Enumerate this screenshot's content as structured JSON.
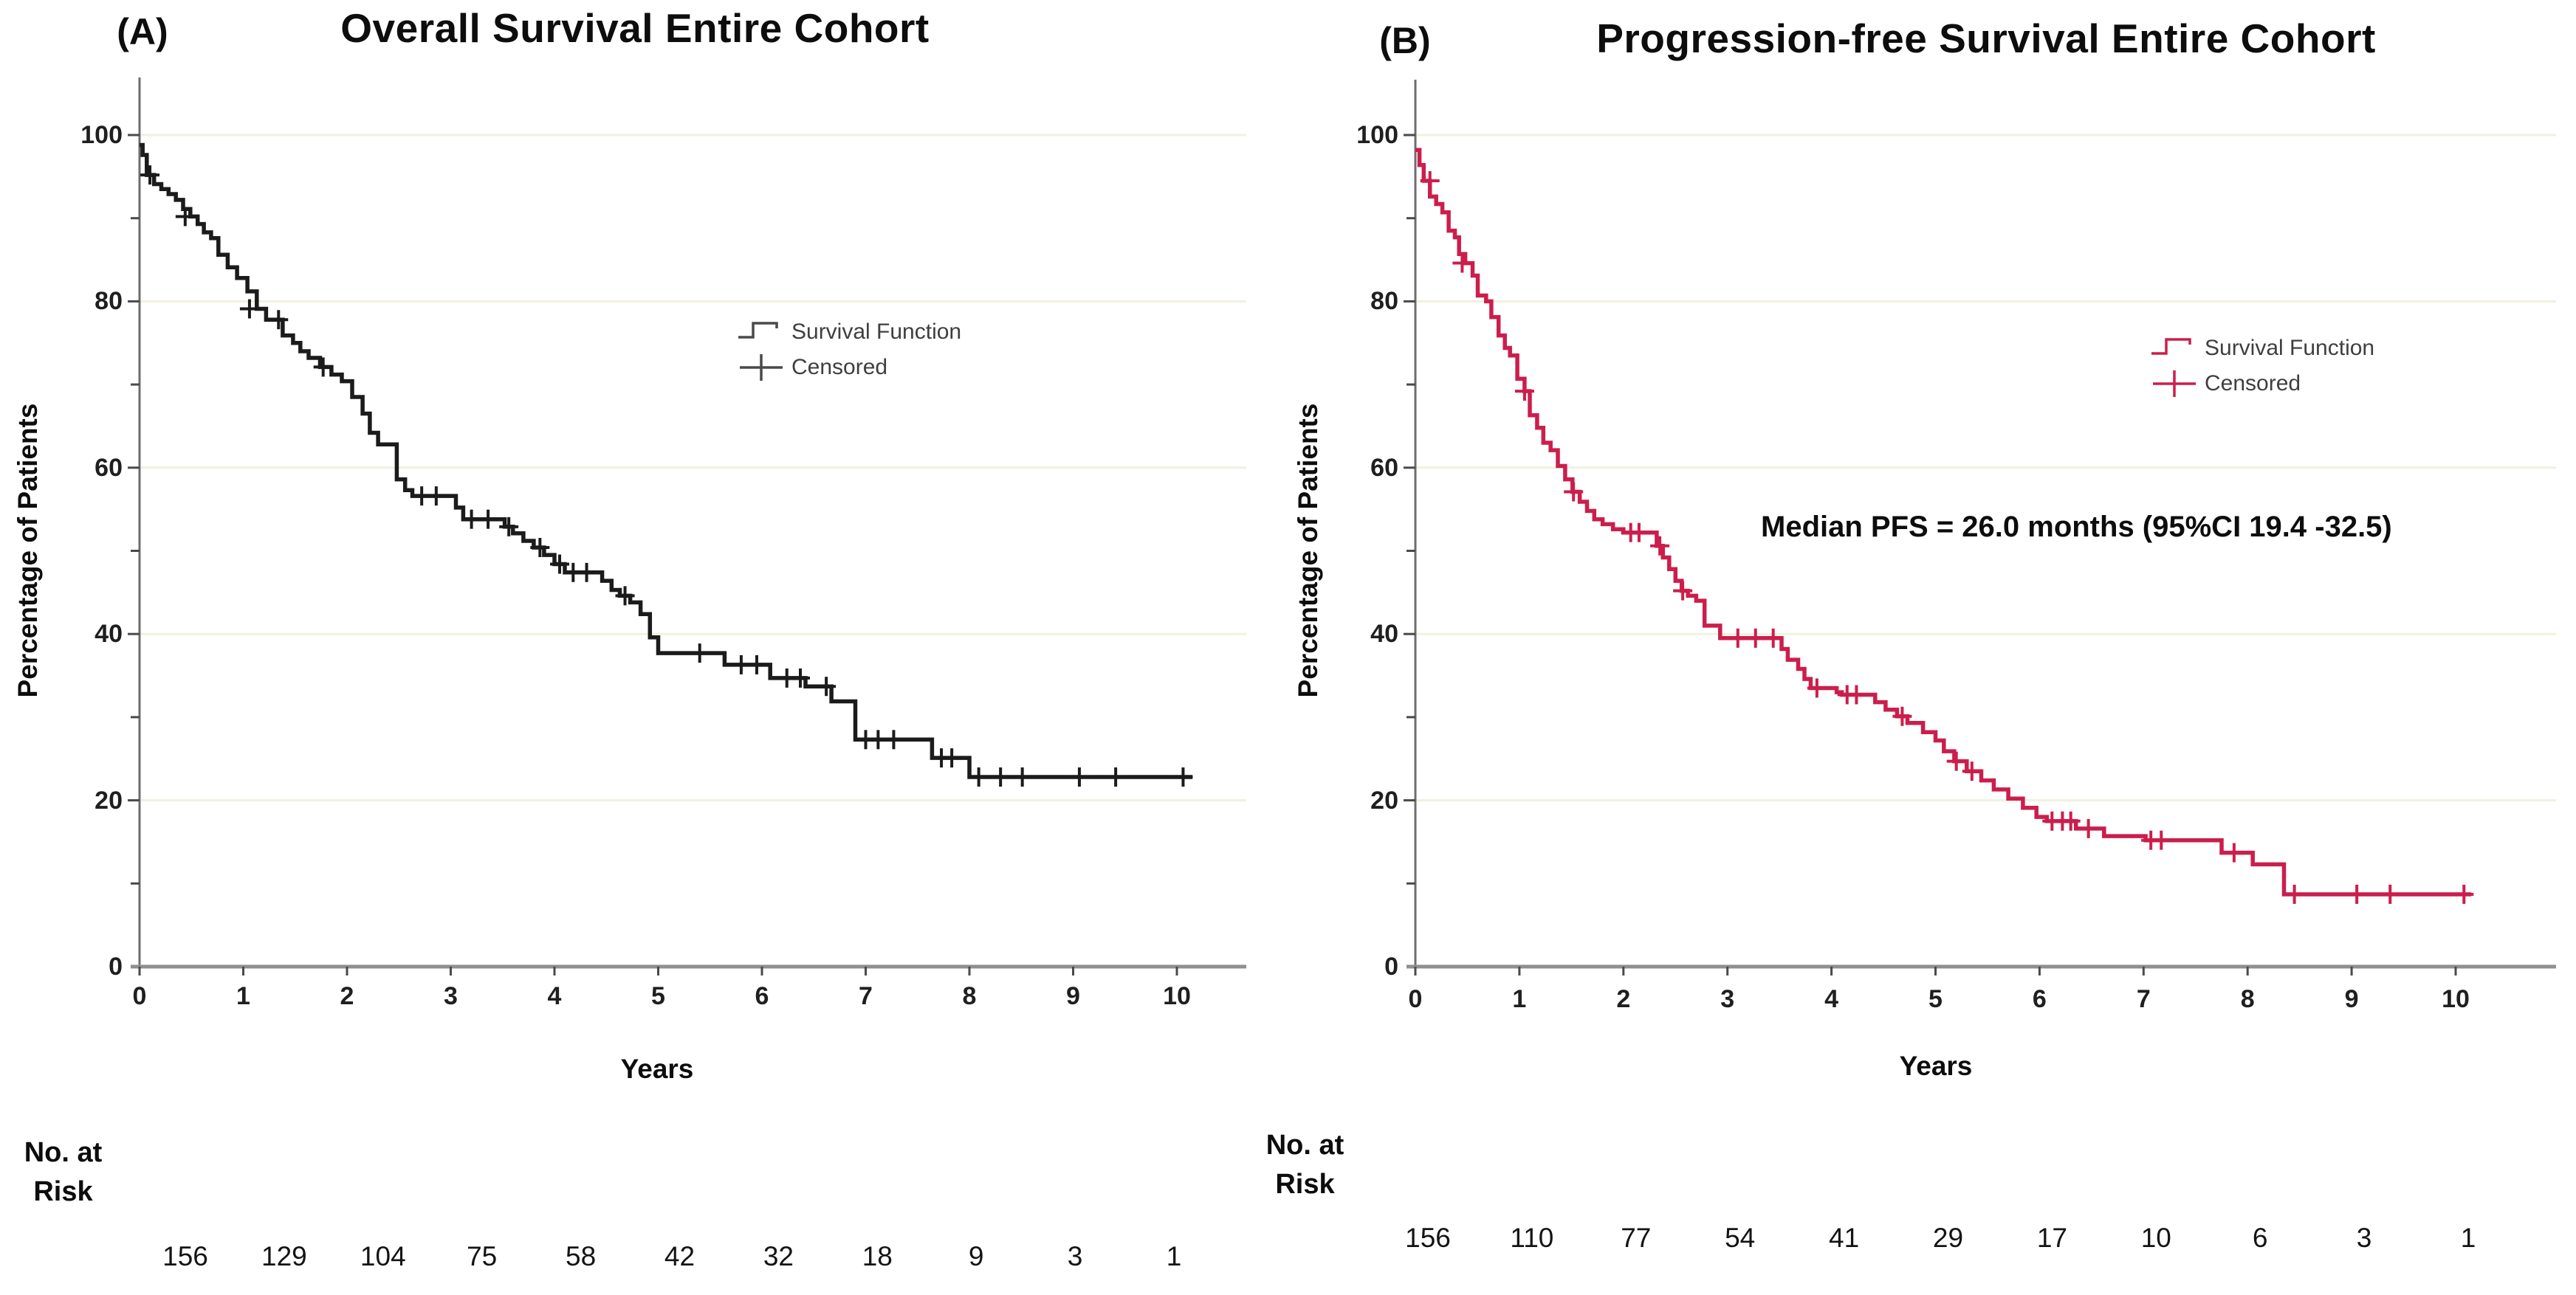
{
  "figure": {
    "panels": [
      {
        "label": "(A)",
        "title": "Overall Survival Entire Cohort",
        "ylabel": "Percentage of Patients",
        "xlabel": "Years",
        "legend": {
          "survival": "Survival Function",
          "censored": "Censored"
        },
        "risk_header_line1": "No. at",
        "risk_header_line2": "Risk"
      },
      {
        "label": "(B)",
        "title": "Progression-free Survival Entire Cohort",
        "ylabel": "Percentage of Patients",
        "xlabel": "Years",
        "legend": {
          "survival": "Survival Function",
          "censored": "Censored"
        },
        "annotation": "Median PFS = 26.0 months (95%CI 19.4 -32.5)",
        "risk_header_line1": "No. at",
        "risk_header_line2": "Risk"
      }
    ]
  },
  "chart_data": [
    {
      "type": "line",
      "subtype": "kaplan-meier-step",
      "panel": "A",
      "title": "Overall Survival Entire Cohort",
      "xlabel": "Years",
      "ylabel": "Percentage of Patients",
      "xlim": [
        0,
        10.5
      ],
      "ylim": [
        0,
        100
      ],
      "xticks": [
        0,
        1,
        2,
        3,
        4,
        5,
        6,
        7,
        8,
        9,
        10
      ],
      "yticks": [
        0,
        20,
        40,
        60,
        80,
        100
      ],
      "y_minor_ticks": [
        10,
        30,
        50,
        70,
        90
      ],
      "gridlines_at": [
        20,
        40,
        60,
        80,
        100
      ],
      "grid": "horizontal-major",
      "legend_position": "center-right",
      "color": "#1b1b1b",
      "series": [
        {
          "name": "Survival Function",
          "end_x": 10.15,
          "step_points": [
            [
              0,
              98.8
            ],
            [
              0.03,
              97.6
            ],
            [
              0.07,
              95.2
            ],
            [
              0.14,
              94.1
            ],
            [
              0.21,
              93.5
            ],
            [
              0.28,
              92.9
            ],
            [
              0.35,
              92.2
            ],
            [
              0.42,
              91.1
            ],
            [
              0.49,
              90.2
            ],
            [
              0.56,
              89.3
            ],
            [
              0.62,
              88.3
            ],
            [
              0.69,
              87.6
            ],
            [
              0.76,
              85.6
            ],
            [
              0.85,
              84.1
            ],
            [
              0.94,
              82.8
            ],
            [
              1.04,
              81.2
            ],
            [
              1.13,
              79.1
            ],
            [
              1.22,
              77.8
            ],
            [
              1.38,
              75.9
            ],
            [
              1.48,
              75.0
            ],
            [
              1.55,
              74.0
            ],
            [
              1.63,
              73.2
            ],
            [
              1.74,
              72.1
            ],
            [
              1.85,
              71.2
            ],
            [
              1.95,
              70.4
            ],
            [
              2.05,
              68.5
            ],
            [
              2.15,
              66.5
            ],
            [
              2.22,
              64.2
            ],
            [
              2.3,
              62.8
            ],
            [
              2.48,
              58.6
            ],
            [
              2.56,
              57.3
            ],
            [
              2.63,
              56.6
            ],
            [
              3.05,
              55.2
            ],
            [
              3.12,
              53.8
            ],
            [
              3.52,
              52.9
            ],
            [
              3.6,
              52.1
            ],
            [
              3.7,
              51.2
            ],
            [
              3.8,
              50.4
            ],
            [
              3.9,
              49.5
            ],
            [
              4.0,
              48.4
            ],
            [
              4.1,
              47.4
            ],
            [
              4.46,
              46.4
            ],
            [
              4.55,
              45.3
            ],
            [
              4.63,
              44.6
            ],
            [
              4.73,
              43.8
            ],
            [
              4.83,
              42.4
            ],
            [
              4.92,
              39.6
            ],
            [
              5.0,
              37.7
            ],
            [
              5.64,
              36.3
            ],
            [
              6.08,
              34.7
            ],
            [
              6.42,
              33.7
            ],
            [
              6.67,
              31.9
            ],
            [
              6.9,
              27.3
            ],
            [
              7.64,
              25.1
            ],
            [
              8.0,
              22.8
            ]
          ]
        }
      ],
      "censored": [
        [
          0.1,
          95.2
        ],
        [
          0.44,
          90.2
        ],
        [
          1.06,
          79.1
        ],
        [
          1.34,
          77.8
        ],
        [
          1.77,
          72.1
        ],
        [
          2.72,
          56.6
        ],
        [
          2.86,
          56.6
        ],
        [
          3.2,
          53.8
        ],
        [
          3.36,
          53.8
        ],
        [
          3.56,
          52.9
        ],
        [
          3.86,
          50.4
        ],
        [
          4.05,
          48.4
        ],
        [
          4.18,
          47.4
        ],
        [
          4.31,
          47.4
        ],
        [
          4.68,
          44.6
        ],
        [
          5.4,
          37.7
        ],
        [
          5.8,
          36.3
        ],
        [
          5.95,
          36.3
        ],
        [
          6.24,
          34.7
        ],
        [
          6.37,
          34.7
        ],
        [
          6.62,
          33.7
        ],
        [
          7.0,
          27.3
        ],
        [
          7.12,
          27.3
        ],
        [
          7.27,
          27.3
        ],
        [
          7.73,
          25.1
        ],
        [
          7.83,
          25.1
        ],
        [
          8.09,
          22.8
        ],
        [
          8.3,
          22.8
        ],
        [
          8.51,
          22.8
        ],
        [
          9.06,
          22.8
        ],
        [
          9.41,
          22.8
        ],
        [
          10.06,
          22.8
        ]
      ],
      "at_risk": {
        "label": "No. at Risk",
        "times": [
          0,
          1,
          2,
          3,
          4,
          5,
          6,
          7,
          8,
          9,
          10
        ],
        "counts": [
          156,
          129,
          104,
          75,
          58,
          42,
          32,
          18,
          9,
          3,
          1
        ]
      }
    },
    {
      "type": "line",
      "subtype": "kaplan-meier-step",
      "panel": "B",
      "title": "Progression-free Survival Entire Cohort",
      "xlabel": "Years",
      "ylabel": "Percentage of Patients",
      "annotation": "Median PFS = 26.0 months (95%CI 19.4 -32.5)",
      "median_pfs_months": 26.0,
      "ci95": [
        19.4,
        32.5
      ],
      "xlim": [
        0,
        10.5
      ],
      "ylim": [
        0,
        100
      ],
      "xticks": [
        0,
        1,
        2,
        3,
        4,
        5,
        6,
        7,
        8,
        9,
        10
      ],
      "yticks": [
        0,
        20,
        40,
        60,
        80,
        100
      ],
      "y_minor_ticks": [
        10,
        30,
        50,
        70,
        90
      ],
      "gridlines_at": [
        20,
        40,
        60,
        80,
        100
      ],
      "grid": "horizontal-major",
      "legend_position": "center-right",
      "color": "#cb1e4c",
      "series": [
        {
          "name": "Survival Function",
          "end_x": 10.15,
          "step_points": [
            [
              0,
              98.2
            ],
            [
              0.04,
              96.4
            ],
            [
              0.08,
              94.5
            ],
            [
              0.14,
              92.6
            ],
            [
              0.2,
              91.7
            ],
            [
              0.26,
              90.7
            ],
            [
              0.32,
              88.5
            ],
            [
              0.38,
              87.7
            ],
            [
              0.42,
              85.7
            ],
            [
              0.48,
              84.6
            ],
            [
              0.55,
              83.1
            ],
            [
              0.6,
              80.7
            ],
            [
              0.68,
              80.0
            ],
            [
              0.73,
              78.1
            ],
            [
              0.8,
              75.9
            ],
            [
              0.86,
              74.4
            ],
            [
              0.91,
              73.5
            ],
            [
              0.98,
              70.7
            ],
            [
              1.05,
              69.2
            ],
            [
              1.1,
              66.3
            ],
            [
              1.17,
              64.8
            ],
            [
              1.23,
              63.0
            ],
            [
              1.3,
              62.1
            ],
            [
              1.37,
              60.2
            ],
            [
              1.44,
              58.6
            ],
            [
              1.51,
              57.1
            ],
            [
              1.58,
              55.9
            ],
            [
              1.65,
              54.8
            ],
            [
              1.72,
              53.8
            ],
            [
              1.8,
              53.2
            ],
            [
              1.9,
              52.6
            ],
            [
              2.0,
              52.2
            ],
            [
              2.32,
              50.6
            ],
            [
              2.38,
              49.2
            ],
            [
              2.44,
              47.8
            ],
            [
              2.5,
              46.4
            ],
            [
              2.56,
              45.2
            ],
            [
              2.62,
              44.6
            ],
            [
              2.7,
              44.0
            ],
            [
              2.78,
              41.0
            ],
            [
              2.93,
              39.5
            ],
            [
              3.52,
              38.2
            ],
            [
              3.58,
              36.9
            ],
            [
              3.68,
              35.8
            ],
            [
              3.74,
              34.6
            ],
            [
              3.8,
              33.5
            ],
            [
              4.05,
              33.0
            ],
            [
              4.1,
              32.7
            ],
            [
              4.42,
              31.8
            ],
            [
              4.52,
              30.9
            ],
            [
              4.63,
              30.1
            ],
            [
              4.73,
              29.3
            ],
            [
              4.88,
              28.2
            ],
            [
              5.0,
              27.2
            ],
            [
              5.08,
              25.9
            ],
            [
              5.18,
              24.7
            ],
            [
              5.3,
              23.5
            ],
            [
              5.44,
              22.4
            ],
            [
              5.56,
              21.3
            ],
            [
              5.7,
              20.2
            ],
            [
              5.84,
              19.1
            ],
            [
              5.97,
              18.0
            ],
            [
              6.07,
              17.5
            ],
            [
              6.35,
              16.6
            ],
            [
              6.62,
              15.7
            ],
            [
              7.02,
              15.2
            ],
            [
              7.75,
              13.7
            ],
            [
              8.05,
              12.3
            ],
            [
              8.35,
              8.7
            ]
          ]
        }
      ],
      "censored": [
        [
          0.14,
          94.5
        ],
        [
          0.45,
          84.6
        ],
        [
          1.05,
          69.2
        ],
        [
          1.52,
          57.1
        ],
        [
          2.07,
          52.2
        ],
        [
          2.15,
          52.2
        ],
        [
          2.35,
          50.6
        ],
        [
          2.57,
          45.2
        ],
        [
          3.1,
          39.5
        ],
        [
          3.27,
          39.5
        ],
        [
          3.44,
          39.5
        ],
        [
          3.86,
          33.5
        ],
        [
          4.15,
          32.7
        ],
        [
          4.24,
          32.7
        ],
        [
          4.68,
          30.1
        ],
        [
          5.2,
          24.7
        ],
        [
          5.35,
          23.5
        ],
        [
          6.12,
          17.5
        ],
        [
          6.22,
          17.5
        ],
        [
          6.3,
          17.5
        ],
        [
          6.47,
          16.6
        ],
        [
          7.07,
          15.2
        ],
        [
          7.17,
          15.2
        ],
        [
          7.87,
          13.7
        ],
        [
          8.45,
          8.7
        ],
        [
          9.05,
          8.7
        ],
        [
          9.37,
          8.7
        ],
        [
          10.08,
          8.7
        ]
      ],
      "at_risk": {
        "label": "No. at Risk",
        "times": [
          0,
          1,
          2,
          3,
          4,
          5,
          6,
          7,
          8,
          9,
          10
        ],
        "counts": [
          156,
          110,
          77,
          54,
          41,
          29,
          17,
          10,
          6,
          3,
          1
        ]
      }
    }
  ],
  "style_colors": {
    "curve_a": "#1b1b1b",
    "curve_b": "#cb1e4c",
    "gridline": "#f2f0df",
    "x_axis": "#8f8f8f",
    "y_axis": "#6e6e6e",
    "tick": "#4a4a4a",
    "legend_text": "#3f3f3f"
  }
}
